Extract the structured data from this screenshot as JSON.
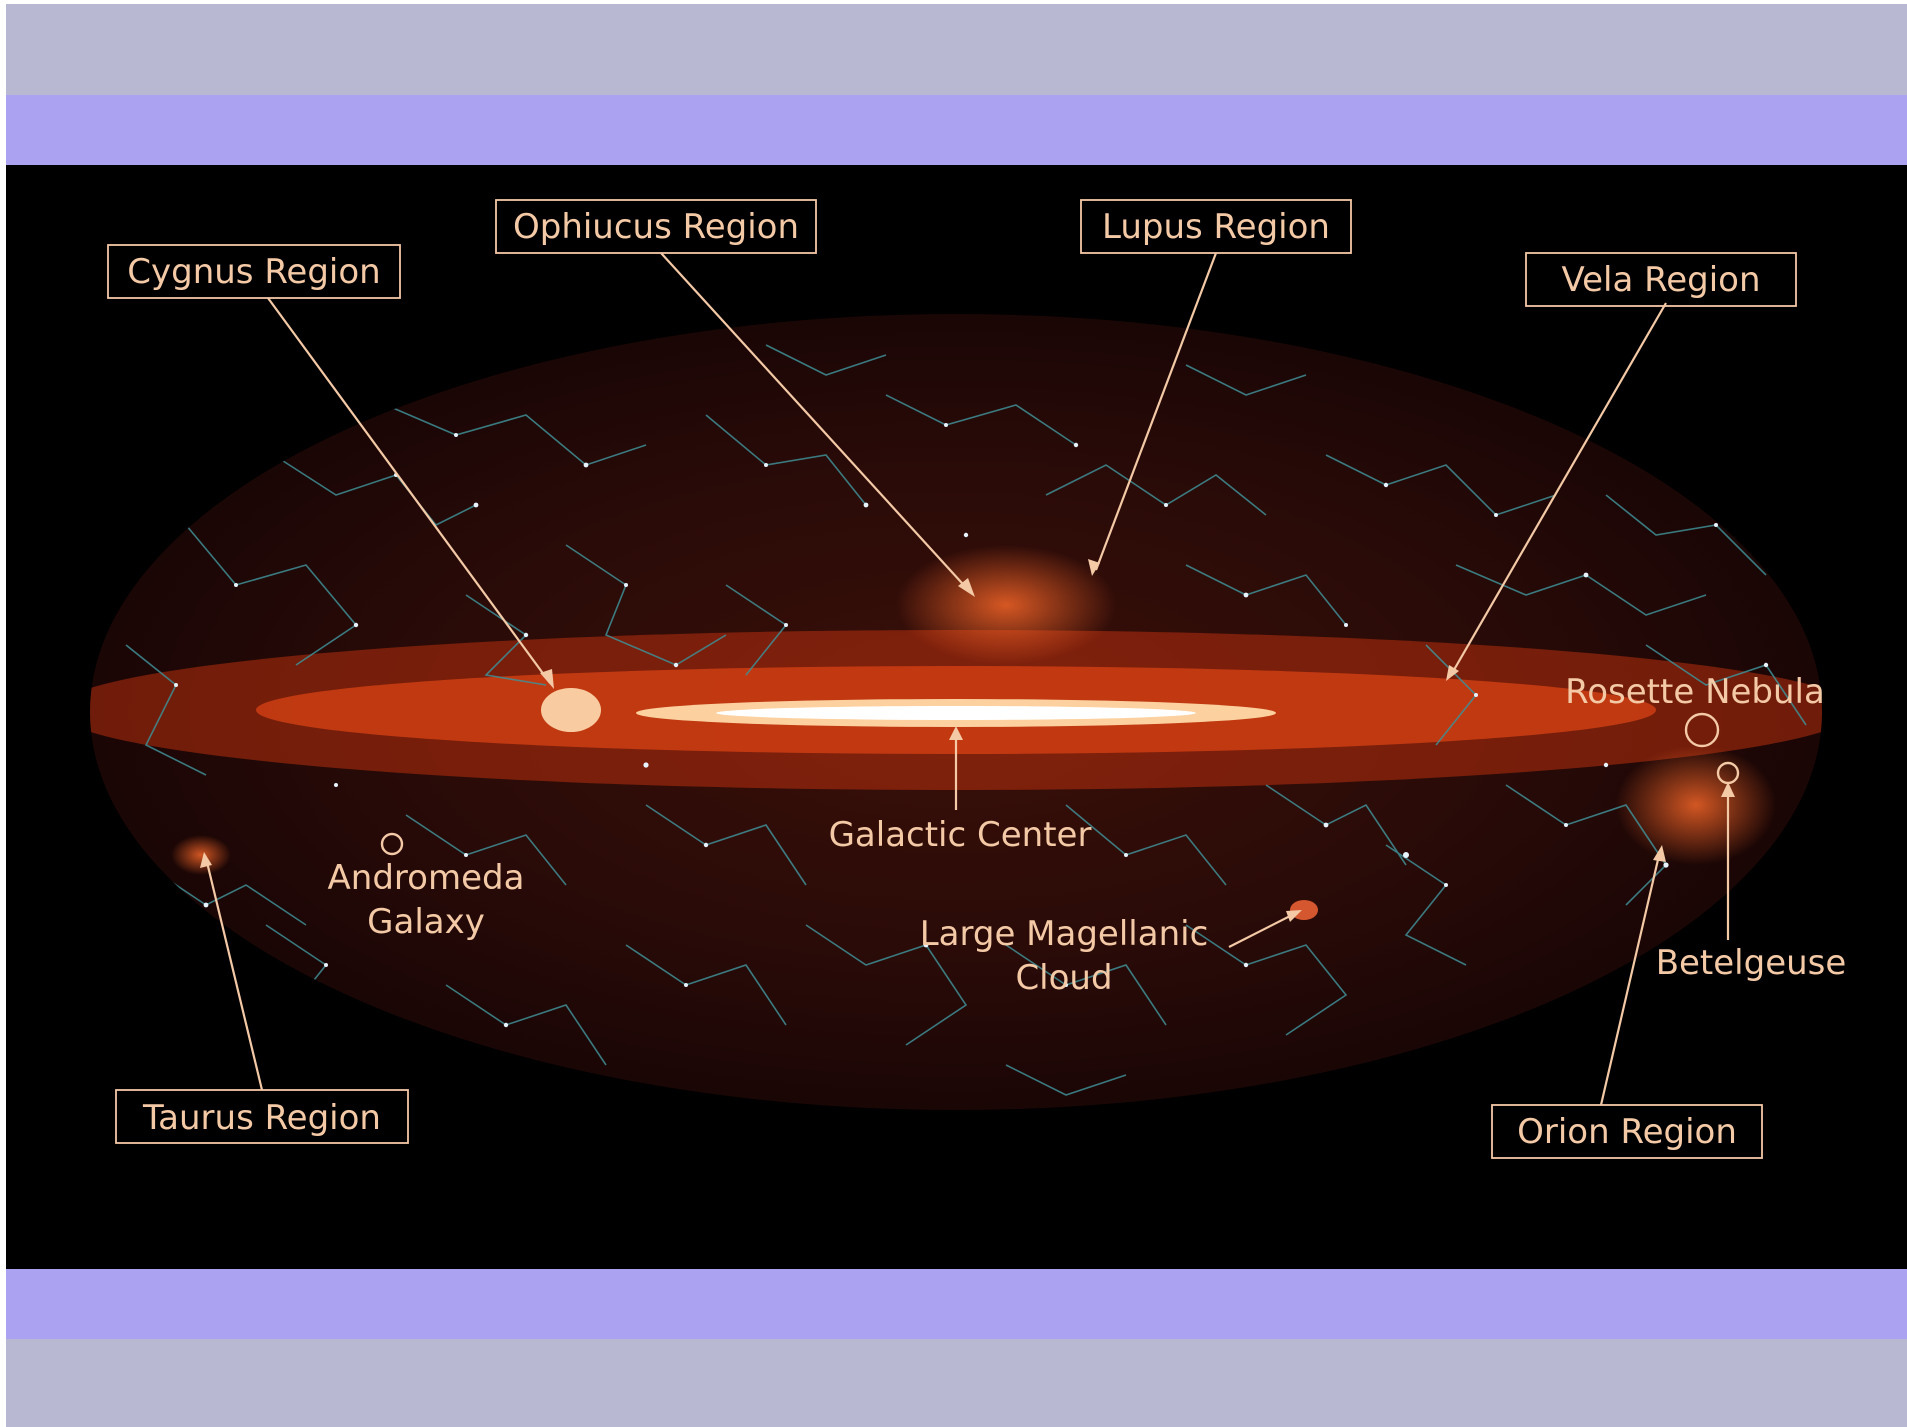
{
  "colors": {
    "band_outer": "#b8b8d2",
    "band_inner": "#aba3f2",
    "panel_background": "#000000",
    "annotation": "#f4c9a6",
    "constellation_lines": "#3f8f96",
    "milky_way": "#ff5a1e"
  },
  "labels": {
    "cygnus": "Cygnus Region",
    "ophiucus": "Ophiucus Region",
    "lupus": "Lupus Region",
    "vela": "Vela Region",
    "rosette": "Rosette Nebula",
    "galactic_center": "Galactic Center",
    "andromeda_line1": "Andromeda",
    "andromeda_line2": "Galaxy",
    "lmc_line1": "Large Magellanic",
    "lmc_line2": "Cloud",
    "betelgeuse": "Betelgeuse",
    "taurus": "Taurus Region",
    "orion": "Orion Region"
  }
}
